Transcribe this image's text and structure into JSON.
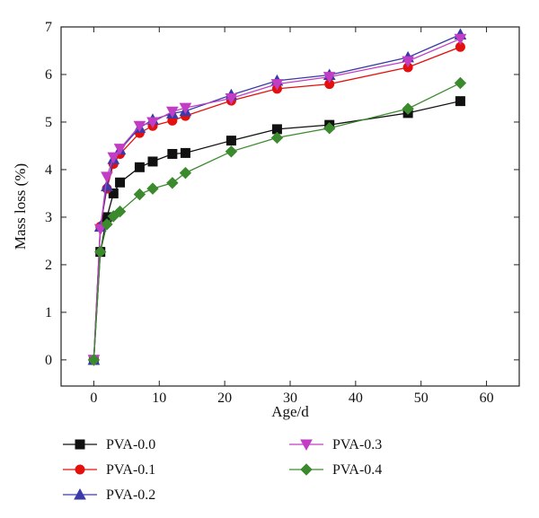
{
  "chart_data": {
    "type": "line",
    "xlabel": "Age/d",
    "ylabel": "Mass loss (%)",
    "xlim": [
      -5,
      65
    ],
    "ylim": [
      -0.55,
      7
    ],
    "xticks": [
      0,
      10,
      20,
      30,
      40,
      50,
      60
    ],
    "yticks": [
      0,
      1,
      2,
      3,
      4,
      5,
      6,
      7
    ],
    "grid": false,
    "legend_position": "bottom",
    "x": [
      0,
      1,
      2,
      3,
      4,
      7,
      9,
      12,
      14,
      21,
      28,
      36,
      48,
      56
    ],
    "series": [
      {
        "name": "PVA-0.0",
        "color": "#111111",
        "marker": "square",
        "values": [
          0,
          2.27,
          3.0,
          3.5,
          3.73,
          4.05,
          4.17,
          4.33,
          4.35,
          4.61,
          4.85,
          4.94,
          5.19,
          5.44
        ]
      },
      {
        "name": "PVA-0.1",
        "color": "#e3100d",
        "marker": "circle",
        "values": [
          0,
          2.8,
          3.6,
          4.12,
          4.33,
          4.77,
          4.92,
          5.03,
          5.13,
          5.45,
          5.7,
          5.8,
          6.15,
          6.58
        ]
      },
      {
        "name": "PVA-0.2",
        "color": "#3a3aa8",
        "marker": "triangle-up",
        "values": [
          0,
          2.8,
          3.65,
          4.22,
          4.42,
          4.88,
          5.05,
          5.18,
          5.23,
          5.57,
          5.87,
          5.99,
          6.36,
          6.84
        ]
      },
      {
        "name": "PVA-0.3",
        "color": "#c13ec4",
        "marker": "triangle-down",
        "values": [
          0,
          2.75,
          3.85,
          4.26,
          4.44,
          4.92,
          5.0,
          5.22,
          5.3,
          5.5,
          5.8,
          5.95,
          6.28,
          6.75
        ]
      },
      {
        "name": "PVA-0.4",
        "color": "#3c8a2e",
        "marker": "diamond",
        "values": [
          0,
          2.27,
          2.85,
          3.02,
          3.12,
          3.48,
          3.6,
          3.72,
          3.93,
          4.38,
          4.67,
          4.87,
          5.28,
          5.82
        ]
      }
    ]
  }
}
